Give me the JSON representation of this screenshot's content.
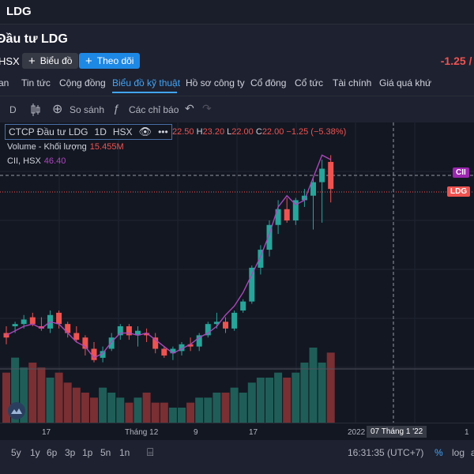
{
  "topbar": {
    "title": "LDG"
  },
  "header": {
    "company": "Đầu tư LDG",
    "exchange": "HSX",
    "chart_btn": "Biểu đồ",
    "follow_btn": "Theo dõi",
    "change": "-1.25 / -"
  },
  "nav": {
    "items": [
      "an",
      "Tin tức",
      "Cộng đồng",
      "Biểu đồ kỹ thuật",
      "Hồ sơ công ty",
      "Cổ đông",
      "Cổ tức",
      "Tài chính",
      "Giá quá khứ"
    ],
    "active": "Biểu đồ kỹ thuật"
  },
  "toolbar": {
    "interval_short": "D",
    "compare": "So sánh",
    "indicators": "Các chỉ báo"
  },
  "legend": {
    "symbol": "CTCP Đầu tư LDG",
    "interval": "1D",
    "exchange": "HSX",
    "o_key": "",
    "o_val": "22.50",
    "h_key": "H",
    "h_val": "23.20",
    "l_key": "L",
    "l_val": "22.00",
    "c_key": "C",
    "c_val": "22.00",
    "change": "−1.25 (−5.38%)",
    "volume_label": "Volume - Khối lượng",
    "volume_val": "15.455M",
    "compare_label": "CII, HSX",
    "compare_val": "46.40",
    "tag_cii": "CII",
    "tag_ldg": "LDG"
  },
  "xaxis": {
    "labels": [
      "17",
      "Tháng 12",
      "9",
      "17",
      "2022",
      "1"
    ],
    "crosshair": "07 Tháng 1 '22"
  },
  "bottom": {
    "ranges": [
      "5y",
      "1y",
      "6p",
      "3p",
      "1p",
      "5n",
      "1n"
    ],
    "time": "16:31:35 (UTC+7)",
    "pct": "%",
    "log": "log",
    "auto": "a"
  },
  "colors": {
    "up": "#26a69a",
    "down": "#ef5350",
    "line": "#ab47bc",
    "accent": "#42a5f5"
  },
  "chart_data": {
    "type": "candlestick",
    "candles": [
      {
        "o": 24.6,
        "h": 24.9,
        "l": 24.1,
        "c": 24.4
      },
      {
        "o": 24.9,
        "h": 25.1,
        "l": 24.6,
        "c": 25.0
      },
      {
        "o": 25.0,
        "h": 25.4,
        "l": 24.8,
        "c": 25.2
      },
      {
        "o": 25.3,
        "h": 25.5,
        "l": 24.9,
        "c": 25.0
      },
      {
        "o": 24.9,
        "h": 25.3,
        "l": 24.7,
        "c": 24.8
      },
      {
        "o": 24.8,
        "h": 25.6,
        "l": 24.6,
        "c": 25.4
      },
      {
        "o": 25.5,
        "h": 25.6,
        "l": 24.8,
        "c": 25.0
      },
      {
        "o": 25.0,
        "h": 25.1,
        "l": 24.4,
        "c": 24.6
      },
      {
        "o": 24.6,
        "h": 24.9,
        "l": 24.2,
        "c": 24.3
      },
      {
        "o": 24.4,
        "h": 24.5,
        "l": 23.6,
        "c": 23.9
      },
      {
        "o": 23.9,
        "h": 24.2,
        "l": 23.3,
        "c": 23.4
      },
      {
        "o": 23.5,
        "h": 24.0,
        "l": 23.3,
        "c": 23.8
      },
      {
        "o": 23.9,
        "h": 24.6,
        "l": 23.8,
        "c": 24.4
      },
      {
        "o": 24.5,
        "h": 25.0,
        "l": 24.3,
        "c": 24.9
      },
      {
        "o": 24.9,
        "h": 25.0,
        "l": 24.3,
        "c": 24.5
      },
      {
        "o": 24.5,
        "h": 24.9,
        "l": 24.0,
        "c": 24.7
      },
      {
        "o": 24.6,
        "h": 24.8,
        "l": 24.2,
        "c": 24.5
      },
      {
        "o": 24.4,
        "h": 24.6,
        "l": 23.7,
        "c": 23.9
      },
      {
        "o": 23.9,
        "h": 24.0,
        "l": 23.5,
        "c": 23.6
      },
      {
        "o": 23.7,
        "h": 24.0,
        "l": 23.4,
        "c": 23.9
      },
      {
        "o": 23.8,
        "h": 24.2,
        "l": 23.6,
        "c": 24.1
      },
      {
        "o": 24.1,
        "h": 24.4,
        "l": 23.8,
        "c": 24.0
      },
      {
        "o": 24.0,
        "h": 24.6,
        "l": 23.8,
        "c": 24.5
      },
      {
        "o": 24.5,
        "h": 25.1,
        "l": 24.4,
        "c": 25.0
      },
      {
        "o": 25.0,
        "h": 25.5,
        "l": 24.8,
        "c": 25.1
      },
      {
        "o": 25.1,
        "h": 25.3,
        "l": 24.6,
        "c": 24.8
      },
      {
        "o": 24.8,
        "h": 25.6,
        "l": 24.7,
        "c": 25.5
      },
      {
        "o": 25.6,
        "h": 26.1,
        "l": 25.5,
        "c": 26.0
      },
      {
        "o": 26.0,
        "h": 27.6,
        "l": 25.9,
        "c": 27.5
      },
      {
        "o": 27.5,
        "h": 28.5,
        "l": 27.2,
        "c": 28.3
      },
      {
        "o": 28.3,
        "h": 29.6,
        "l": 28.0,
        "c": 29.4
      },
      {
        "o": 29.4,
        "h": 30.5,
        "l": 29.0,
        "c": 30.1
      },
      {
        "o": 30.1,
        "h": 30.6,
        "l": 29.5,
        "c": 29.6
      },
      {
        "o": 29.6,
        "h": 30.6,
        "l": 29.4,
        "c": 30.5
      },
      {
        "o": 30.5,
        "h": 31.0,
        "l": 30.2,
        "c": 30.7
      },
      {
        "o": 30.7,
        "h": 31.5,
        "l": 29.2,
        "c": 31.3
      },
      {
        "o": 31.3,
        "h": 32.3,
        "l": 29.5,
        "c": 31.9
      },
      {
        "o": 32.2,
        "h": 32.5,
        "l": 30.4,
        "c": 31.0
      }
    ],
    "volume": [
      10,
      13,
      11,
      12,
      11,
      9,
      10,
      8,
      7,
      6,
      5,
      7,
      6,
      5,
      4,
      5,
      6,
      4,
      4,
      3,
      3,
      4,
      5,
      5,
      6,
      6,
      7,
      6,
      8,
      9,
      9,
      10,
      9,
      10,
      12,
      15,
      12,
      14
    ],
    "cii_line": [
      24.5,
      24.7,
      24.9,
      25.0,
      24.8,
      25.1,
      25.0,
      24.6,
      24.2,
      24.0,
      23.5,
      23.7,
      24.2,
      24.6,
      24.6,
      24.5,
      24.6,
      24.3,
      24.0,
      23.7,
      23.9,
      24.1,
      24.4,
      24.6,
      24.9,
      25.4,
      25.8,
      26.4,
      27.2,
      28.0,
      29.0,
      30.2,
      30.7,
      30.3,
      30.5,
      31.5,
      32.5,
      32.3
    ],
    "ylim": [
      22.9,
      32.9
    ],
    "xlabels": [
      "17",
      "Tháng 12",
      "9",
      "17",
      "2022",
      "1"
    ]
  }
}
